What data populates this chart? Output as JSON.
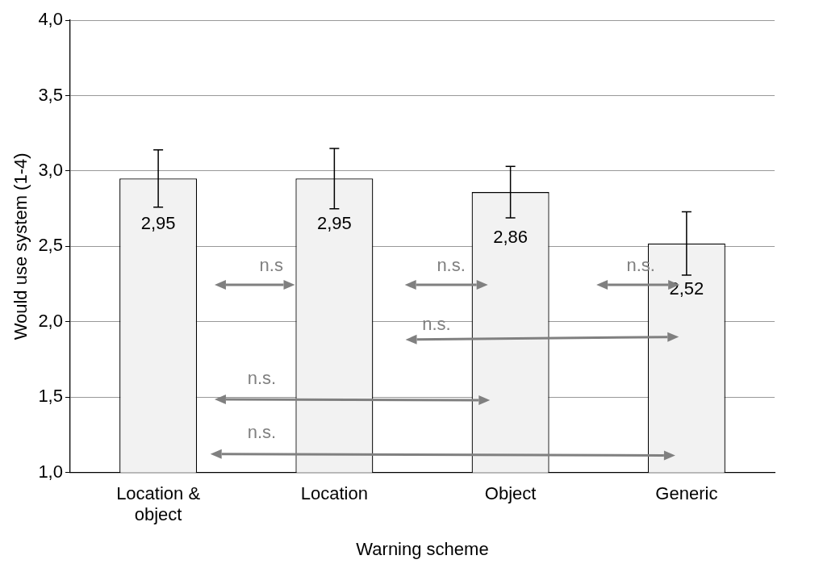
{
  "chart_data": {
    "type": "bar",
    "xlabel": "Warning scheme",
    "ylabel": "Would use system (1-4)",
    "categories": [
      "Location & object",
      "Location",
      "Object",
      "Generic"
    ],
    "values": [
      2.95,
      2.95,
      2.86,
      2.52
    ],
    "value_labels": [
      "2,95",
      "2,95",
      "2,86",
      "2,52"
    ],
    "errors": [
      0.19,
      0.2,
      0.17,
      0.21
    ],
    "color": "#f2f2f2",
    "ylim": [
      1,
      4
    ],
    "yticks": [
      {
        "value": 1,
        "label": "1,0"
      },
      {
        "value": 1.5,
        "label": "1,5"
      },
      {
        "value": 2,
        "label": "2,0"
      },
      {
        "value": 2.5,
        "label": "2,5"
      },
      {
        "value": 3,
        "label": "3,0"
      },
      {
        "value": 3.5,
        "label": "3,5"
      },
      {
        "value": 4,
        "label": "4,0"
      }
    ],
    "grid": "y",
    "annotations": [
      "n.s",
      "n.s.",
      "n.s.",
      "n.s.",
      "n.s.",
      "n.s."
    ]
  }
}
